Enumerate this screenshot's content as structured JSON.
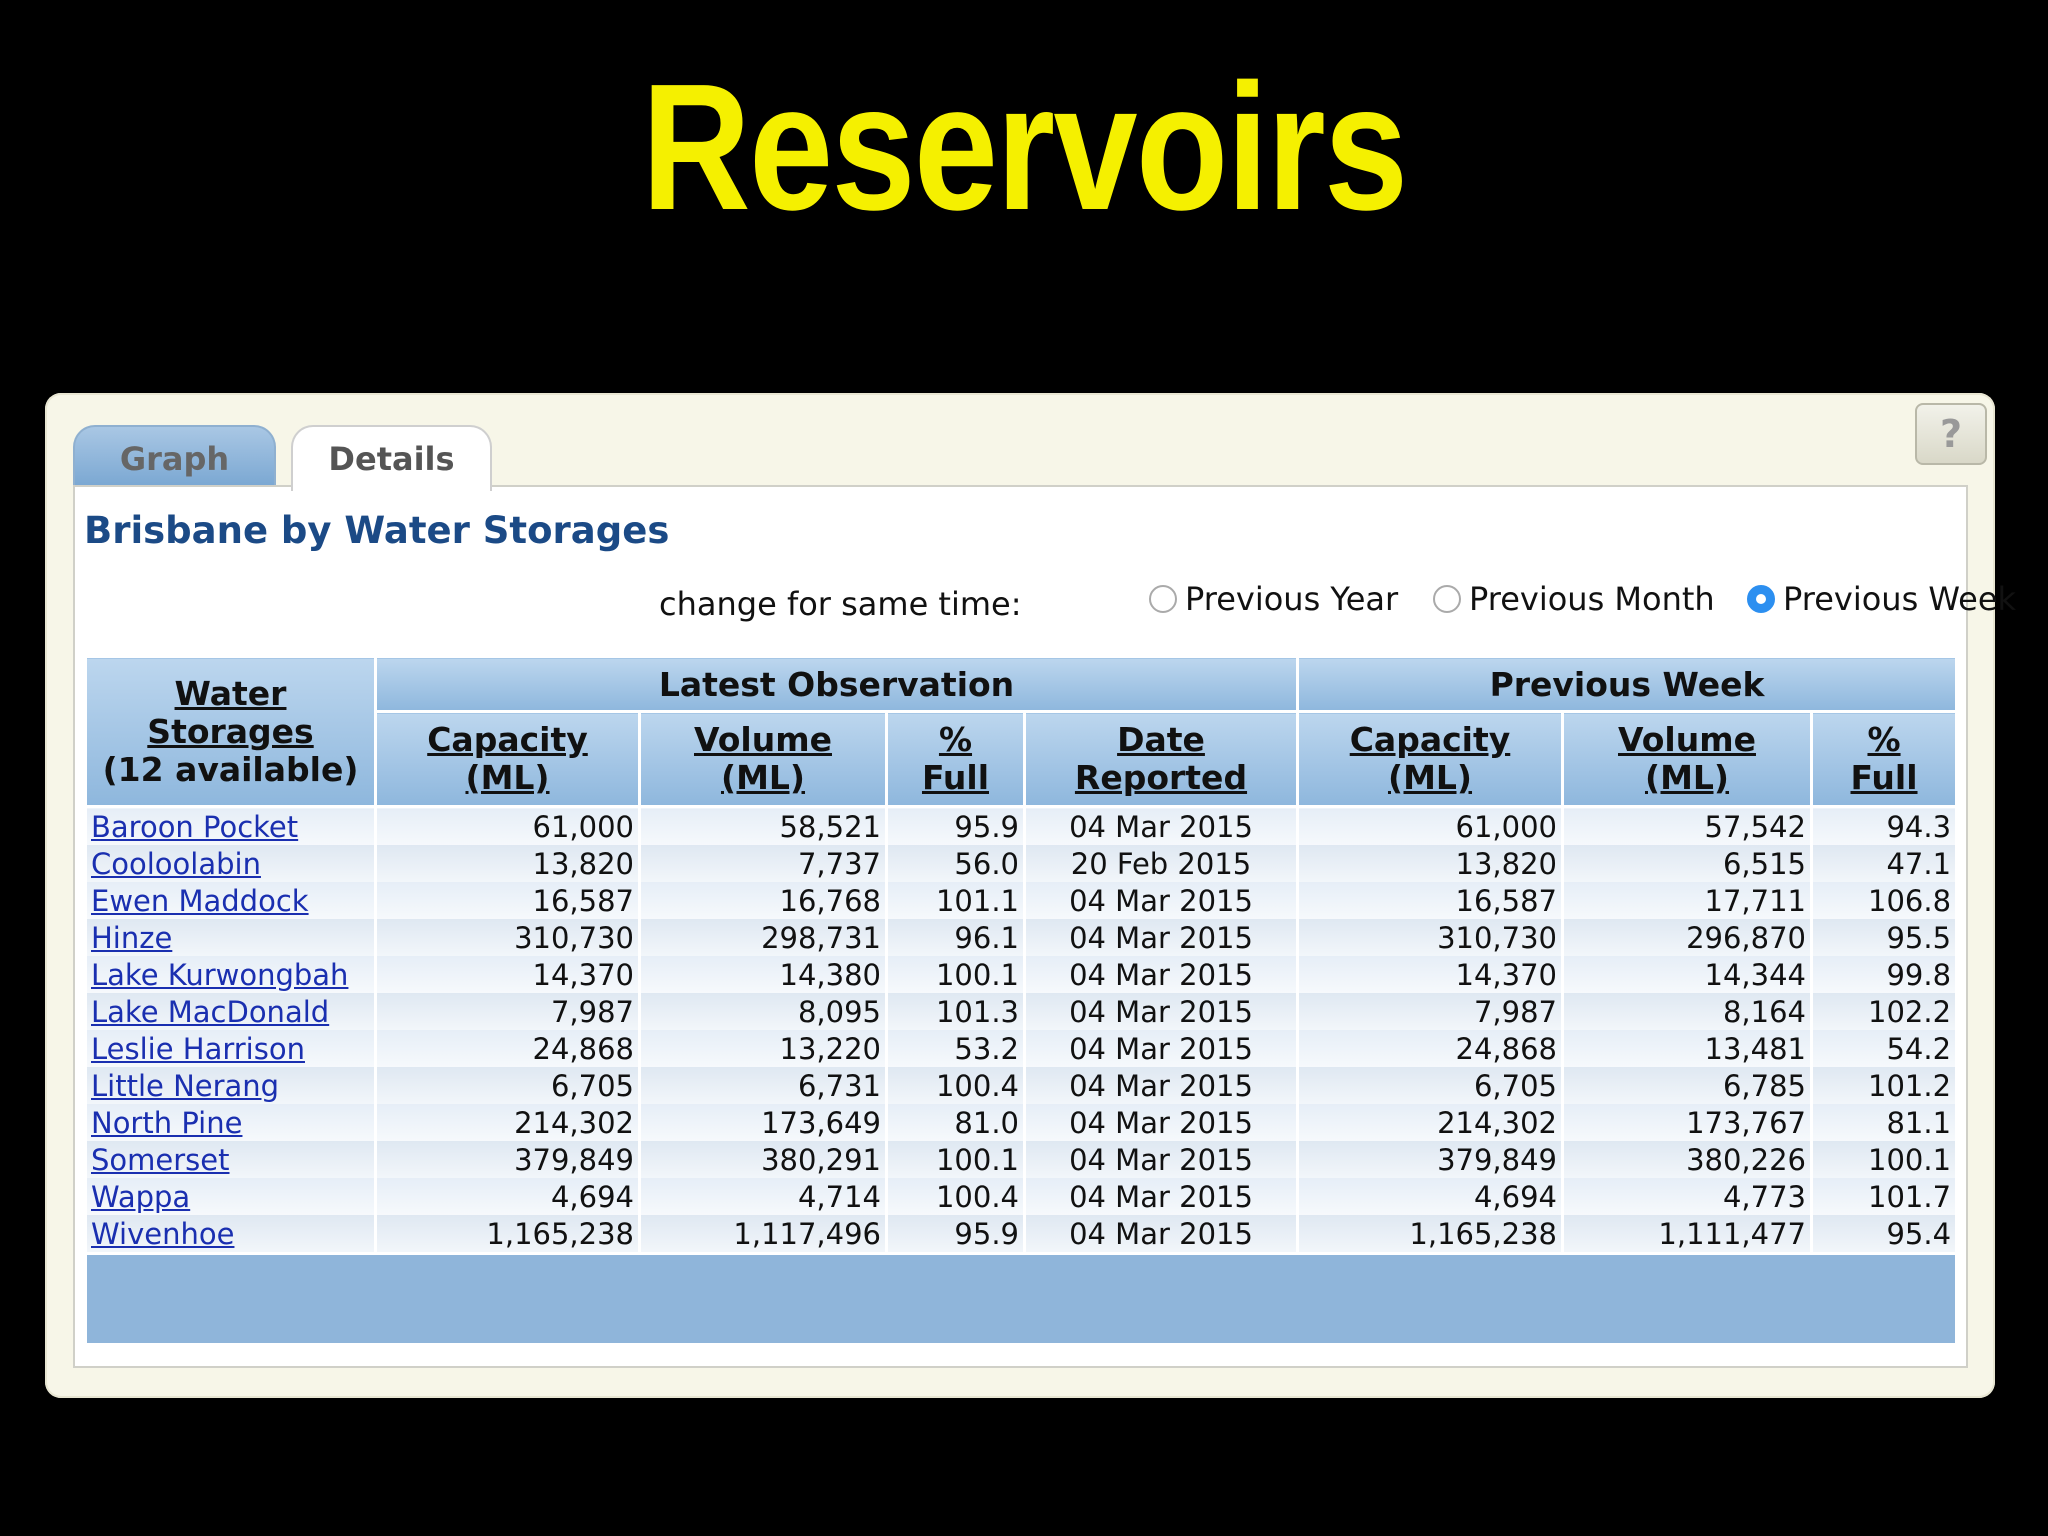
{
  "slide": {
    "title": "Reservoirs"
  },
  "tabs": [
    {
      "label": "Graph"
    },
    {
      "label": "Details"
    }
  ],
  "help": {
    "label": "?"
  },
  "section_title": "Brisbane by Water Storages",
  "change": {
    "label": "change for same time:",
    "options": [
      "Previous Year",
      "Previous Month",
      "Previous Week"
    ],
    "selected": "Previous Week"
  },
  "table": {
    "storage_header": {
      "line1": "Water",
      "line2": "Storages",
      "line3": "(12 available)"
    },
    "group_latest": "Latest Observation",
    "group_previous": "Previous Week",
    "columns": {
      "capacity": {
        "line1": "Capacity",
        "line2": "(ML)"
      },
      "volume": {
        "line1": "Volume",
        "line2": "(ML)"
      },
      "full": {
        "line1": "%",
        "line2": "Full"
      },
      "date": {
        "line1": "Date",
        "line2": "Reported"
      }
    },
    "rows": [
      {
        "name": "Baroon Pocket",
        "cap": "61,000",
        "vol": "58,521",
        "full": "95.9",
        "date": "04 Mar 2015",
        "pcap": "61,000",
        "pvol": "57,542",
        "pfull": "94.3"
      },
      {
        "name": "Cooloolabin",
        "cap": "13,820",
        "vol": "7,737",
        "full": "56.0",
        "date": "20 Feb 2015",
        "pcap": "13,820",
        "pvol": "6,515",
        "pfull": "47.1"
      },
      {
        "name": "Ewen Maddock",
        "cap": "16,587",
        "vol": "16,768",
        "full": "101.1",
        "date": "04 Mar 2015",
        "pcap": "16,587",
        "pvol": "17,711",
        "pfull": "106.8"
      },
      {
        "name": "Hinze",
        "cap": "310,730",
        "vol": "298,731",
        "full": "96.1",
        "date": "04 Mar 2015",
        "pcap": "310,730",
        "pvol": "296,870",
        "pfull": "95.5"
      },
      {
        "name": "Lake Kurwongbah",
        "cap": "14,370",
        "vol": "14,380",
        "full": "100.1",
        "date": "04 Mar 2015",
        "pcap": "14,370",
        "pvol": "14,344",
        "pfull": "99.8"
      },
      {
        "name": "Lake MacDonald",
        "cap": "7,987",
        "vol": "8,095",
        "full": "101.3",
        "date": "04 Mar 2015",
        "pcap": "7,987",
        "pvol": "8,164",
        "pfull": "102.2"
      },
      {
        "name": "Leslie Harrison",
        "cap": "24,868",
        "vol": "13,220",
        "full": "53.2",
        "date": "04 Mar 2015",
        "pcap": "24,868",
        "pvol": "13,481",
        "pfull": "54.2"
      },
      {
        "name": "Little Nerang",
        "cap": "6,705",
        "vol": "6,731",
        "full": "100.4",
        "date": "04 Mar 2015",
        "pcap": "6,705",
        "pvol": "6,785",
        "pfull": "101.2"
      },
      {
        "name": "North Pine",
        "cap": "214,302",
        "vol": "173,649",
        "full": "81.0",
        "date": "04 Mar 2015",
        "pcap": "214,302",
        "pvol": "173,767",
        "pfull": "81.1"
      },
      {
        "name": "Somerset",
        "cap": "379,849",
        "vol": "380,291",
        "full": "100.1",
        "date": "04 Mar 2015",
        "pcap": "379,849",
        "pvol": "380,226",
        "pfull": "100.1"
      },
      {
        "name": "Wappa",
        "cap": "4,694",
        "vol": "4,714",
        "full": "100.4",
        "date": "04 Mar 2015",
        "pcap": "4,694",
        "pvol": "4,773",
        "pfull": "101.7"
      },
      {
        "name": "Wivenhoe",
        "cap": "1,165,238",
        "vol": "1,117,496",
        "full": "95.9",
        "date": "04 Mar 2015",
        "pcap": "1,165,238",
        "pvol": "1,111,477",
        "pfull": "95.4"
      }
    ]
  },
  "colors": {
    "title": "#f5f000",
    "header_blue": "#8eb7dd",
    "link": "#1a2fb0",
    "section_title": "#1b4a86",
    "radio_selected": "#2c8ff0"
  }
}
